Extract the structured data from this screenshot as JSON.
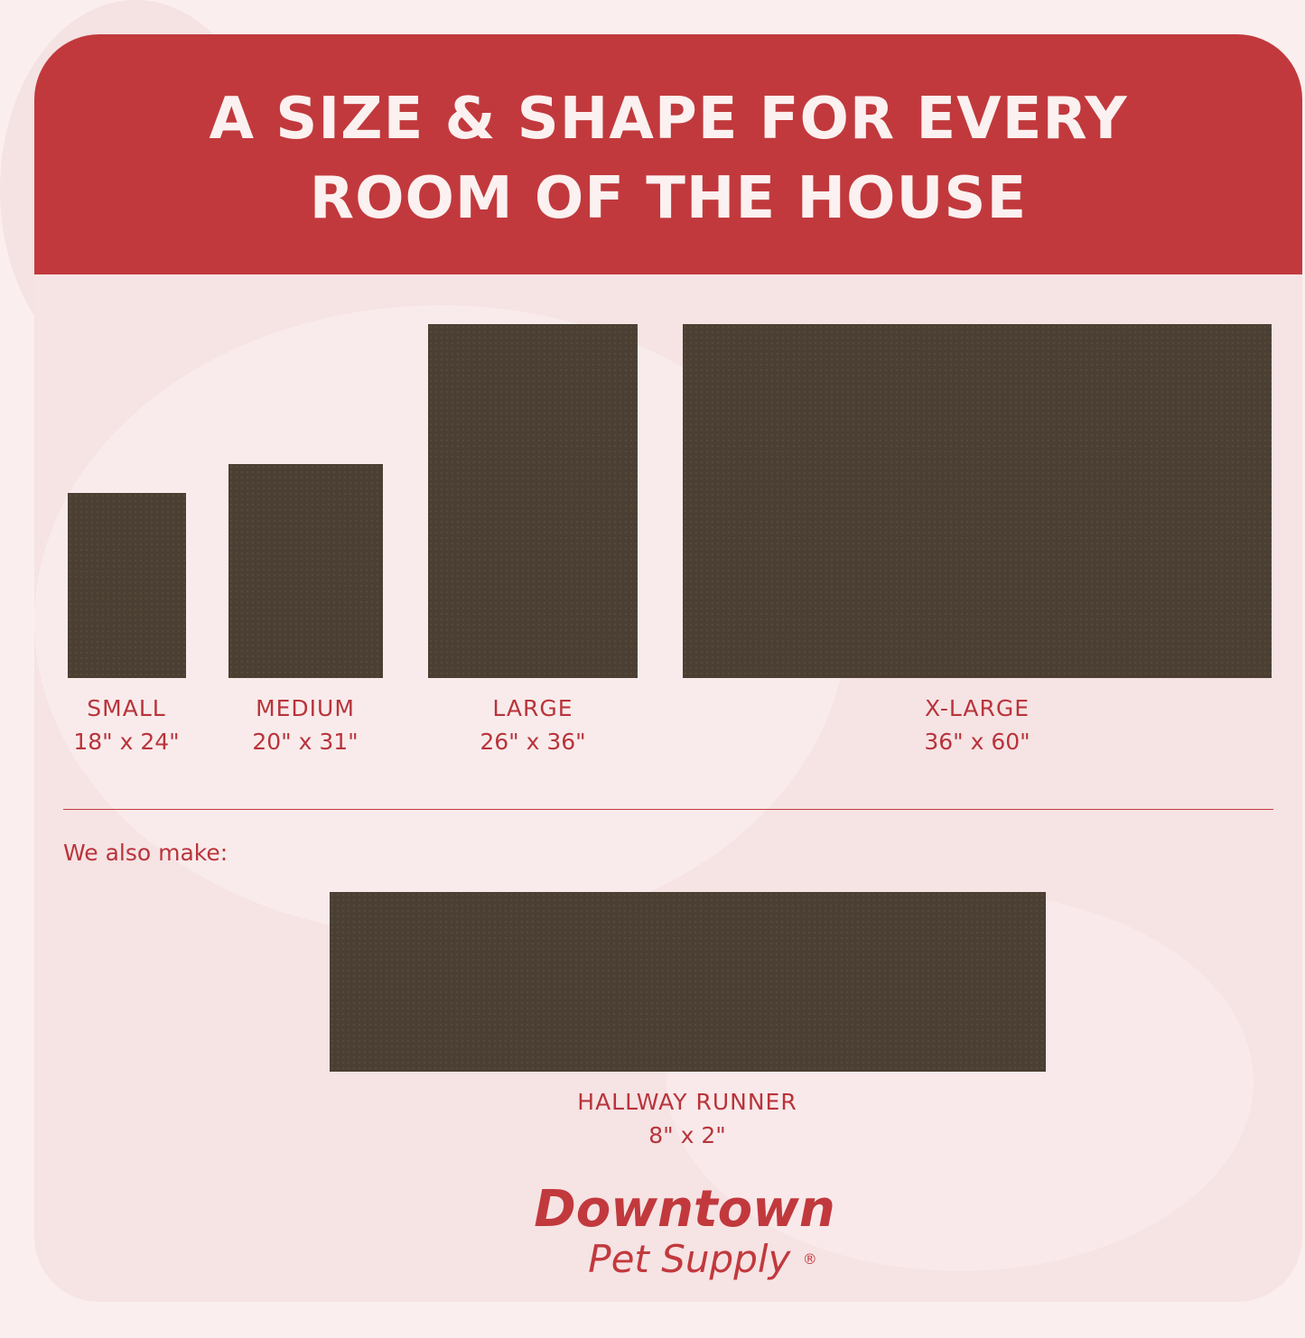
{
  "header": {
    "title_line1": "A SIZE & SHAPE FOR EVERY",
    "title_line2": "ROOM OF THE HOUSE"
  },
  "sizes": [
    {
      "name": "SMALL",
      "dimensions": "18\" x 24\""
    },
    {
      "name": "MEDIUM",
      "dimensions": "20\" x 31\""
    },
    {
      "name": "LARGE",
      "dimensions": "26\" x 36\""
    },
    {
      "name": "X-LARGE",
      "dimensions": "36\" x 60\""
    }
  ],
  "also": {
    "label": "We also make:",
    "name": "HALLWAY RUNNER",
    "dimensions": "8\" x 2\""
  },
  "logo": {
    "line1": "Downtown",
    "line2": "Pet Supply",
    "mark": "®"
  },
  "colors": {
    "brand_red": "#c1393d",
    "mat": "#4a3f32",
    "background": "#f6e3e4"
  }
}
